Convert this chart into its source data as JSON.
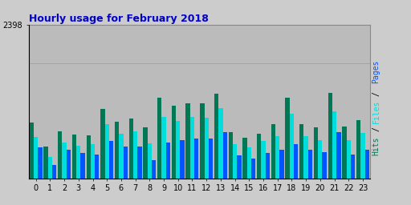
{
  "title": "Hourly usage for February 2018",
  "hours": [
    0,
    1,
    2,
    3,
    4,
    5,
    6,
    7,
    8,
    9,
    10,
    11,
    12,
    13,
    14,
    15,
    16,
    17,
    18,
    19,
    20,
    21,
    22,
    23
  ],
  "pages": [
    480,
    210,
    440,
    400,
    370,
    580,
    490,
    490,
    290,
    560,
    590,
    620,
    620,
    720,
    360,
    310,
    400,
    450,
    530,
    450,
    410,
    720,
    370,
    440
  ],
  "files": [
    640,
    330,
    560,
    510,
    530,
    840,
    700,
    730,
    540,
    960,
    890,
    960,
    940,
    1090,
    530,
    480,
    580,
    660,
    1010,
    660,
    600,
    1050,
    600,
    710
  ],
  "hits": [
    870,
    490,
    730,
    680,
    670,
    1080,
    880,
    930,
    800,
    1260,
    1130,
    1170,
    1170,
    1320,
    720,
    630,
    700,
    840,
    1260,
    850,
    800,
    1330,
    810,
    910
  ],
  "ymax": 2398,
  "ytick_label": "2398",
  "color_hits": "#007755",
  "color_files": "#00dddd",
  "color_pages": "#0055ff",
  "bg_color": "#cccccc",
  "plot_bg": "#bbbbbb",
  "title_color": "#0000cc",
  "title_fontsize": 9,
  "bar_width": 0.3,
  "figwidth": 5.12,
  "figheight": 2.56,
  "dpi": 100
}
